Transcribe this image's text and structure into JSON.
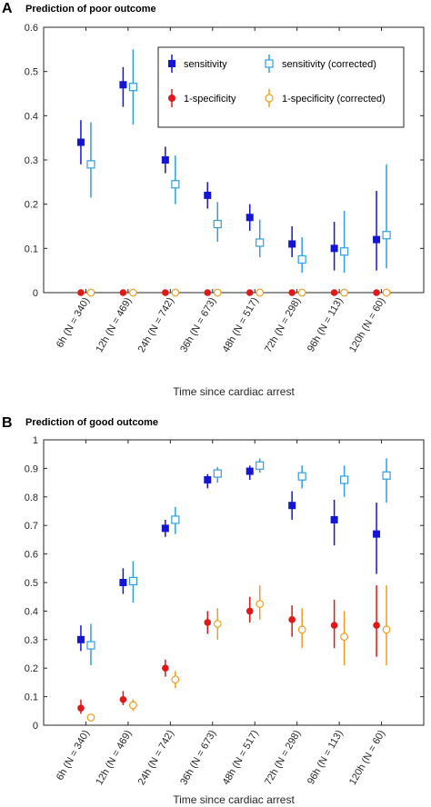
{
  "chart_data": [
    {
      "type": "scatter",
      "panel": "A",
      "title": "Prediction of poor outcome",
      "xlabel": "Time since cardiac arrest",
      "ylabel": "",
      "categories": [
        "6h (N = 340)",
        "12h (N = 469)",
        "24h (N = 742)",
        "36h (N = 673)",
        "48h (N = 517)",
        "72h (N = 298)",
        "96h (N = 113)",
        "120h (N = 60)"
      ],
      "yticks": [
        "0",
        "0.1",
        "0.2",
        "0.3",
        "0.4",
        "0.5",
        "0.6"
      ],
      "ylim": [
        0,
        0.6
      ],
      "grid": false,
      "legend_position": "top-right",
      "series": [
        {
          "name": "sensitivity",
          "color": "#1515d6",
          "marker": "filled-square",
          "offset": -1,
          "values": [
            0.34,
            0.47,
            0.3,
            0.22,
            0.17,
            0.11,
            0.1,
            0.12
          ],
          "lower": [
            0.29,
            0.42,
            0.27,
            0.19,
            0.14,
            0.08,
            0.05,
            0.05
          ],
          "upper": [
            0.39,
            0.51,
            0.33,
            0.25,
            0.2,
            0.15,
            0.16,
            0.23
          ]
        },
        {
          "name": "sensitivity (corrected)",
          "color": "#2e9fe0",
          "marker": "open-square",
          "offset": 1,
          "values": [
            0.29,
            0.465,
            0.245,
            0.155,
            0.113,
            0.075,
            0.093,
            0.13
          ],
          "lower": [
            0.215,
            0.38,
            0.2,
            0.115,
            0.08,
            0.045,
            0.045,
            0.055
          ],
          "upper": [
            0.385,
            0.55,
            0.31,
            0.205,
            0.165,
            0.125,
            0.185,
            0.29
          ]
        },
        {
          "name": "1-specificity",
          "color": "#e01818",
          "marker": "filled-circle",
          "offset": -1,
          "values": [
            0,
            0,
            0,
            0,
            0,
            0,
            0,
            0
          ],
          "lower": [
            0,
            0,
            0,
            0,
            0,
            0,
            0,
            0
          ],
          "upper": [
            0,
            0,
            0,
            0,
            0,
            0,
            0,
            0
          ]
        },
        {
          "name": "1-specificity (corrected)",
          "color": "#f09c1c",
          "marker": "open-circle",
          "offset": 1,
          "values": [
            0,
            0,
            0,
            0,
            0,
            0,
            0,
            0
          ],
          "lower": [
            0,
            0,
            0,
            0,
            0,
            0,
            0,
            0
          ],
          "upper": [
            0,
            0,
            0,
            0,
            0,
            0,
            0,
            0
          ]
        }
      ]
    },
    {
      "type": "scatter",
      "panel": "B",
      "title": "Prediction of good outcome",
      "xlabel": "Time since cardiac arrest",
      "ylabel": "",
      "categories": [
        "6h (N = 340)",
        "12h (N = 469)",
        "24h (N = 742)",
        "36h (N = 673)",
        "48h (N = 517)",
        "72h (N = 298)",
        "96h (N = 113)",
        "120h (N = 60)"
      ],
      "yticks": [
        "0",
        "0.1",
        "0.2",
        "0.3",
        "0.4",
        "0.5",
        "0.6",
        "0.7",
        "0.8",
        "0.9",
        "1"
      ],
      "ylim": [
        0,
        1
      ],
      "grid": false,
      "legend_position": "none",
      "series": [
        {
          "name": "sensitivity",
          "color": "#1515d6",
          "marker": "filled-square",
          "offset": -1,
          "values": [
            0.3,
            0.5,
            0.69,
            0.86,
            0.89,
            0.77,
            0.72,
            0.67
          ],
          "lower": [
            0.26,
            0.46,
            0.66,
            0.83,
            0.86,
            0.72,
            0.63,
            0.53
          ],
          "upper": [
            0.35,
            0.55,
            0.72,
            0.88,
            0.91,
            0.82,
            0.79,
            0.78
          ]
        },
        {
          "name": "sensitivity (corrected)",
          "color": "#2e9fe0",
          "marker": "open-square",
          "offset": 1,
          "values": [
            0.28,
            0.505,
            0.72,
            0.882,
            0.91,
            0.872,
            0.86,
            0.875
          ],
          "lower": [
            0.21,
            0.43,
            0.67,
            0.85,
            0.885,
            0.83,
            0.8,
            0.78
          ],
          "upper": [
            0.355,
            0.575,
            0.765,
            0.905,
            0.935,
            0.91,
            0.91,
            0.935
          ]
        },
        {
          "name": "1-specificity",
          "color": "#e01818",
          "marker": "filled-circle",
          "offset": -1,
          "values": [
            0.06,
            0.09,
            0.2,
            0.36,
            0.4,
            0.37,
            0.35,
            0.35
          ],
          "lower": [
            0.04,
            0.07,
            0.17,
            0.32,
            0.36,
            0.31,
            0.27,
            0.24
          ],
          "upper": [
            0.09,
            0.12,
            0.23,
            0.4,
            0.45,
            0.42,
            0.44,
            0.49
          ]
        },
        {
          "name": "1-specificity (corrected)",
          "color": "#f09c1c",
          "marker": "open-circle",
          "offset": 1,
          "values": [
            0.027,
            0.07,
            0.16,
            0.355,
            0.425,
            0.335,
            0.31,
            0.335
          ],
          "lower": [
            0.015,
            0.05,
            0.13,
            0.3,
            0.37,
            0.27,
            0.21,
            0.21
          ],
          "upper": [
            0.035,
            0.09,
            0.19,
            0.41,
            0.49,
            0.41,
            0.4,
            0.49
          ]
        }
      ]
    }
  ]
}
